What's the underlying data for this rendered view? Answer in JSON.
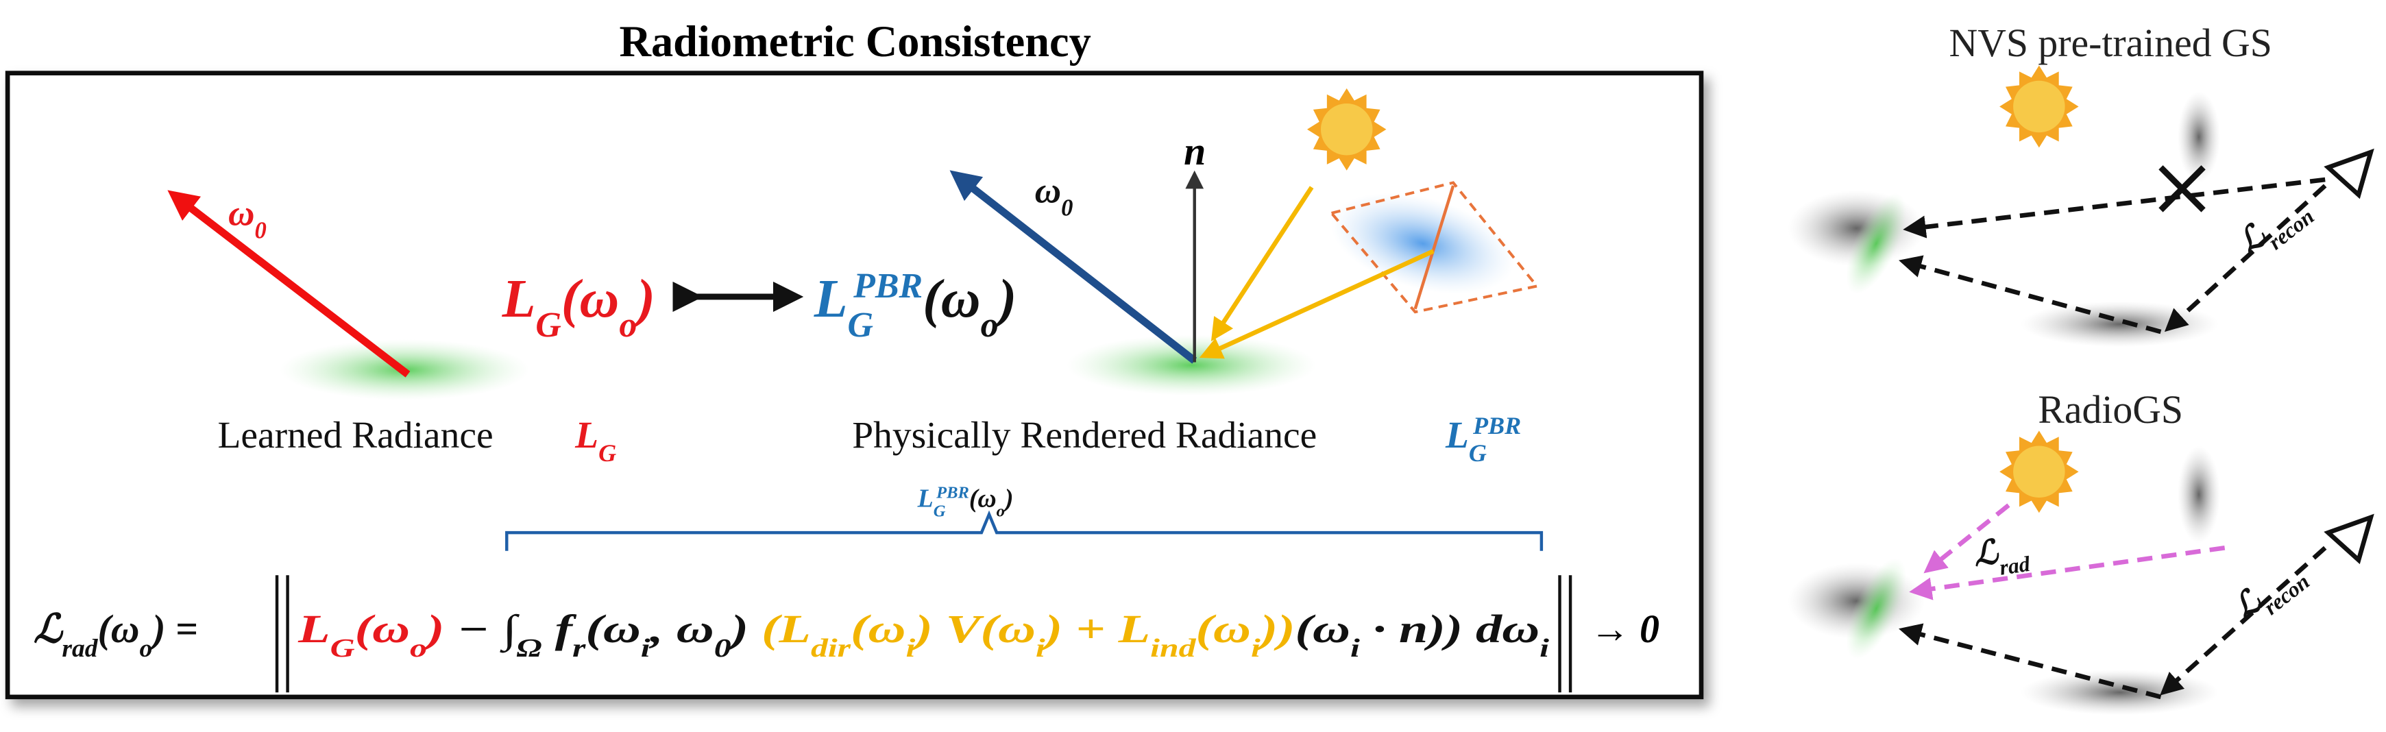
{
  "title": "Radiometric Consistency",
  "learned": {
    "arrow_label": [
      "ω",
      "0"
    ],
    "caption": "Learned Radiance",
    "symbol": [
      "L",
      "G"
    ]
  },
  "comparison": {
    "left": [
      "L",
      "G",
      "(ω",
      "o",
      ")"
    ],
    "right": [
      "L",
      "G",
      "PBR",
      "(ω",
      "o",
      ")"
    ]
  },
  "rendered": {
    "arrow_label": [
      "ω",
      "0"
    ],
    "normal": "n",
    "caption": "Physically Rendered Radiance",
    "symbol": [
      "L",
      "G",
      "PBR"
    ]
  },
  "brace_label": [
    "L",
    "G",
    "PBR",
    "(ω",
    "o",
    ")"
  ],
  "formula": [
    "ℒ",
    "rad",
    "(ω",
    "o",
    ") =",
    "L",
    "G",
    "(ω",
    "o",
    ")",
    " − ∫",
    "Ω",
    " f",
    "r",
    "(ω",
    "i",
    ", ω",
    "0",
    ")",
    " (L",
    "dir",
    "(ω",
    "i",
    ") V(ω",
    "i",
    ") + L",
    "ind",
    "(ω",
    "i",
    "))",
    "(ω",
    "i",
    " · n)) dω",
    "i",
    "→ 0"
  ],
  "nvs_panel": {
    "title": "NVS pre-trained GS",
    "loss": [
      "ℒ",
      "recon"
    ]
  },
  "radiogs_panel": {
    "title": "RadioGS",
    "loss_rad": [
      "ℒ",
      "rad"
    ],
    "loss_recon": [
      "ℒ",
      "recon"
    ]
  }
}
